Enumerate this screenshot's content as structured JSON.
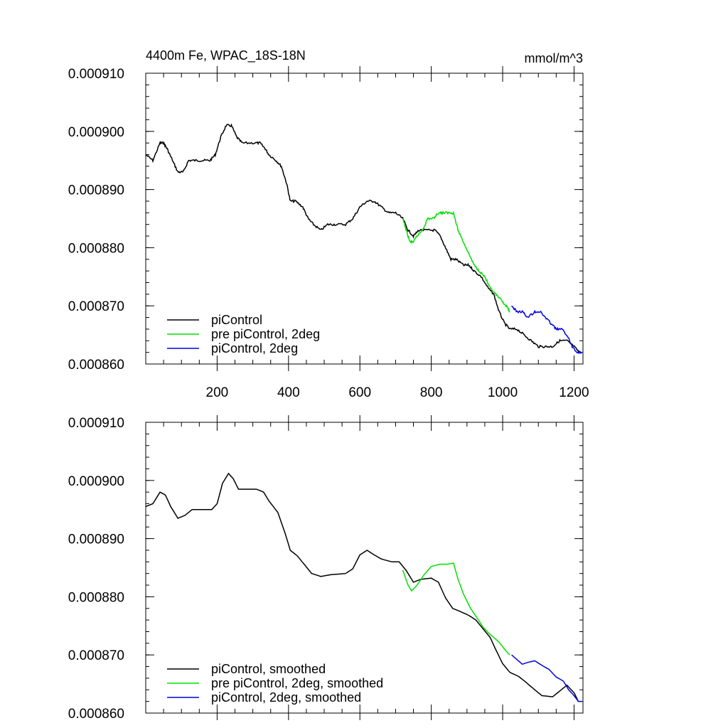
{
  "header": {
    "title": "4400m Fe, WPAC_18S-18N",
    "units": "mmol/m^3"
  },
  "chart_data": [
    {
      "type": "line",
      "title": "4400m Fe, WPAC_18S-18N",
      "units": "mmol/m^3",
      "xlabel": "",
      "ylabel": "",
      "xlim": [
        0,
        1225
      ],
      "ylim": [
        0.00086,
        0.00091
      ],
      "x_ticks": [
        200,
        400,
        600,
        800,
        1000,
        1200
      ],
      "x_tick_labels": [
        "200",
        "400",
        "600",
        "800",
        "1000",
        "1200"
      ],
      "y_ticks": [
        0.00086,
        0.00087,
        0.00088,
        0.00089,
        0.0009,
        0.00091
      ],
      "y_tick_labels": [
        "0.000860",
        "0.000870",
        "0.000880",
        "0.000890",
        "0.000900",
        "0.000910"
      ],
      "legend_position": "bottom-left",
      "grid": false,
      "series": [
        {
          "name": "piControl",
          "color": "#000000",
          "points": [
            [
              0,
              0.000896
            ],
            [
              20,
              0.000895
            ],
            [
              40,
              0.000898
            ],
            [
              50,
              0.000898
            ],
            [
              60,
              0.000897
            ],
            [
              75,
              0.000895
            ],
            [
              90,
              0.000893
            ],
            [
              105,
              0.000893
            ],
            [
              120,
              0.000895
            ],
            [
              140,
              0.000895
            ],
            [
              160,
              0.000895
            ],
            [
              180,
              0.000895
            ],
            [
              195,
              0.000896
            ],
            [
              210,
              0.000899
            ],
            [
              225,
              0.000901
            ],
            [
              240,
              0.000901
            ],
            [
              255,
              0.000899
            ],
            [
              270,
              0.000898
            ],
            [
              300,
              0.000898
            ],
            [
              320,
              0.000898
            ],
            [
              335,
              0.000897
            ],
            [
              345,
              0.000896
            ],
            [
              365,
              0.000895
            ],
            [
              380,
              0.000894
            ],
            [
              395,
              0.000891
            ],
            [
              405,
              0.000888
            ],
            [
              420,
              0.000888
            ],
            [
              440,
              0.000887
            ],
            [
              455,
              0.000885
            ],
            [
              470,
              0.000884
            ],
            [
              490,
              0.000883
            ],
            [
              510,
              0.000884
            ],
            [
              530,
              0.000884
            ],
            [
              560,
              0.000884
            ],
            [
              580,
              0.000885
            ],
            [
              600,
              0.000887
            ],
            [
              620,
              0.000888
            ],
            [
              640,
              0.000888
            ],
            [
              660,
              0.000887
            ],
            [
              680,
              0.000886
            ],
            [
              700,
              0.000886
            ],
            [
              720,
              0.000885
            ],
            [
              735,
              0.000883
            ],
            [
              750,
              0.000882
            ],
            [
              765,
              0.000883
            ],
            [
              790,
              0.000883
            ],
            [
              810,
              0.000883
            ],
            [
              825,
              0.000882
            ],
            [
              840,
              0.00088
            ],
            [
              855,
              0.000878
            ],
            [
              870,
              0.000878
            ],
            [
              890,
              0.000877
            ],
            [
              905,
              0.000877
            ],
            [
              920,
              0.000876
            ],
            [
              940,
              0.000875
            ],
            [
              960,
              0.000873
            ],
            [
              975,
              0.000872
            ],
            [
              990,
              0.000869
            ],
            [
              1005,
              0.000867
            ],
            [
              1020,
              0.000866
            ],
            [
              1040,
              0.000866
            ],
            [
              1060,
              0.000865
            ],
            [
              1080,
              0.000864
            ],
            [
              1100,
              0.000863
            ],
            [
              1120,
              0.000863
            ],
            [
              1140,
              0.000863
            ],
            [
              1160,
              0.000864
            ],
            [
              1180,
              0.000864
            ],
            [
              1200,
              0.000863
            ],
            [
              1215,
              0.000862
            ]
          ]
        },
        {
          "name": "pre piControl, 2deg",
          "color": "#00e000",
          "points": [
            [
              720,
              0.000885
            ],
            [
              730,
              0.000883
            ],
            [
              740,
              0.000881
            ],
            [
              750,
              0.000881
            ],
            [
              760,
              0.000882
            ],
            [
              775,
              0.000883
            ],
            [
              790,
              0.000885
            ],
            [
              805,
              0.000885
            ],
            [
              820,
              0.000886
            ],
            [
              835,
              0.000886
            ],
            [
              850,
              0.000886
            ],
            [
              862,
              0.000886
            ],
            [
              875,
              0.000883
            ],
            [
              890,
              0.000881
            ],
            [
              905,
              0.000879
            ],
            [
              920,
              0.000877
            ],
            [
              935,
              0.000876
            ],
            [
              950,
              0.000875
            ],
            [
              965,
              0.000873
            ],
            [
              980,
              0.000872
            ],
            [
              995,
              0.000871
            ],
            [
              1010,
              0.00087
            ],
            [
              1020,
              0.000869
            ]
          ]
        },
        {
          "name": "piControl, 2deg",
          "color": "#0000e0",
          "points": [
            [
              1025,
              0.00087
            ],
            [
              1040,
              0.000869
            ],
            [
              1055,
              0.000869
            ],
            [
              1070,
              0.000868
            ],
            [
              1090,
              0.000869
            ],
            [
              1105,
              0.000869
            ],
            [
              1120,
              0.000868
            ],
            [
              1135,
              0.000867
            ],
            [
              1150,
              0.000866
            ],
            [
              1165,
              0.000866
            ],
            [
              1180,
              0.000865
            ],
            [
              1195,
              0.000863
            ],
            [
              1210,
              0.000862
            ],
            [
              1222,
              0.000862
            ]
          ]
        }
      ]
    },
    {
      "type": "line",
      "title": "",
      "xlabel": "",
      "ylabel": "",
      "xlim": [
        0,
        1225
      ],
      "ylim": [
        0.00086,
        0.00091
      ],
      "x_ticks": [
        200,
        400,
        600,
        800,
        1000,
        1200
      ],
      "x_tick_labels": [],
      "y_ticks": [
        0.00086,
        0.00087,
        0.00088,
        0.00089,
        0.0009,
        0.00091
      ],
      "y_tick_labels": [
        "0.000860",
        "0.000870",
        "0.000880",
        "0.000890",
        "0.000900",
        "0.000910"
      ],
      "legend_position": "bottom-left",
      "grid": false,
      "series": [
        {
          "name": "piControl, smoothed",
          "color": "#000000",
          "points": [
            [
              0,
              0.0008955
            ],
            [
              20,
              0.000896
            ],
            [
              40,
              0.000898
            ],
            [
              55,
              0.0008975
            ],
            [
              70,
              0.0008955
            ],
            [
              90,
              0.0008935
            ],
            [
              110,
              0.000894
            ],
            [
              130,
              0.000895
            ],
            [
              160,
              0.000895
            ],
            [
              185,
              0.000895
            ],
            [
              200,
              0.000896
            ],
            [
              215,
              0.0008995
            ],
            [
              232,
              0.0009012
            ],
            [
              245,
              0.0009003
            ],
            [
              260,
              0.0008985
            ],
            [
              285,
              0.0008985
            ],
            [
              310,
              0.0008985
            ],
            [
              330,
              0.000898
            ],
            [
              345,
              0.0008965
            ],
            [
              370,
              0.0008945
            ],
            [
              390,
              0.000891
            ],
            [
              405,
              0.000888
            ],
            [
              425,
              0.000887
            ],
            [
              445,
              0.0008855
            ],
            [
              465,
              0.000884
            ],
            [
              490,
              0.0008835
            ],
            [
              520,
              0.0008838
            ],
            [
              560,
              0.000884
            ],
            [
              580,
              0.0008848
            ],
            [
              600,
              0.0008872
            ],
            [
              620,
              0.000888
            ],
            [
              640,
              0.0008872
            ],
            [
              660,
              0.0008865
            ],
            [
              690,
              0.000886
            ],
            [
              710,
              0.000886
            ],
            [
              730,
              0.0008845
            ],
            [
              750,
              0.0008825
            ],
            [
              770,
              0.000883
            ],
            [
              800,
              0.0008832
            ],
            [
              820,
              0.0008825
            ],
            [
              840,
              0.0008798
            ],
            [
              860,
              0.000878
            ],
            [
              880,
              0.0008775
            ],
            [
              905,
              0.0008768
            ],
            [
              925,
              0.000876
            ],
            [
              945,
              0.0008745
            ],
            [
              965,
              0.000873
            ],
            [
              980,
              0.000871
            ],
            [
              1000,
              0.0008685
            ],
            [
              1020,
              0.000867
            ],
            [
              1045,
              0.0008663
            ],
            [
              1065,
              0.0008653
            ],
            [
              1090,
              0.000864
            ],
            [
              1110,
              0.000863
            ],
            [
              1140,
              0.0008628
            ],
            [
              1160,
              0.0008638
            ],
            [
              1180,
              0.0008648
            ],
            [
              1200,
              0.0008635
            ],
            [
              1212,
              0.000862
            ]
          ]
        },
        {
          "name": "pre piControl, 2deg, smoothed",
          "color": "#00e000",
          "points": [
            [
              720,
              0.0008846
            ],
            [
              735,
              0.000882
            ],
            [
              745,
              0.000881
            ],
            [
              760,
              0.000882
            ],
            [
              780,
              0.0008838
            ],
            [
              800,
              0.0008852
            ],
            [
              825,
              0.0008856
            ],
            [
              845,
              0.0008856
            ],
            [
              862,
              0.0008858
            ],
            [
              875,
              0.000883
            ],
            [
              890,
              0.0008805
            ],
            [
              910,
              0.000878
            ],
            [
              930,
              0.0008762
            ],
            [
              945,
              0.0008748
            ],
            [
              960,
              0.0008738
            ],
            [
              975,
              0.000873
            ],
            [
              990,
              0.0008722
            ],
            [
              1005,
              0.000871
            ],
            [
              1020,
              0.00087
            ]
          ]
        },
        {
          "name": "piControl, 2deg, smoothed",
          "color": "#0000e0",
          "points": [
            [
              1025,
              0.00087
            ],
            [
              1040,
              0.0008692
            ],
            [
              1055,
              0.0008684
            ],
            [
              1070,
              0.0008687
            ],
            [
              1090,
              0.000869
            ],
            [
              1110,
              0.0008682
            ],
            [
              1130,
              0.0008675
            ],
            [
              1150,
              0.0008662
            ],
            [
              1170,
              0.0008655
            ],
            [
              1185,
              0.000864
            ],
            [
              1200,
              0.000863
            ],
            [
              1212,
              0.000862
            ],
            [
              1222,
              0.000862
            ]
          ]
        }
      ]
    }
  ]
}
